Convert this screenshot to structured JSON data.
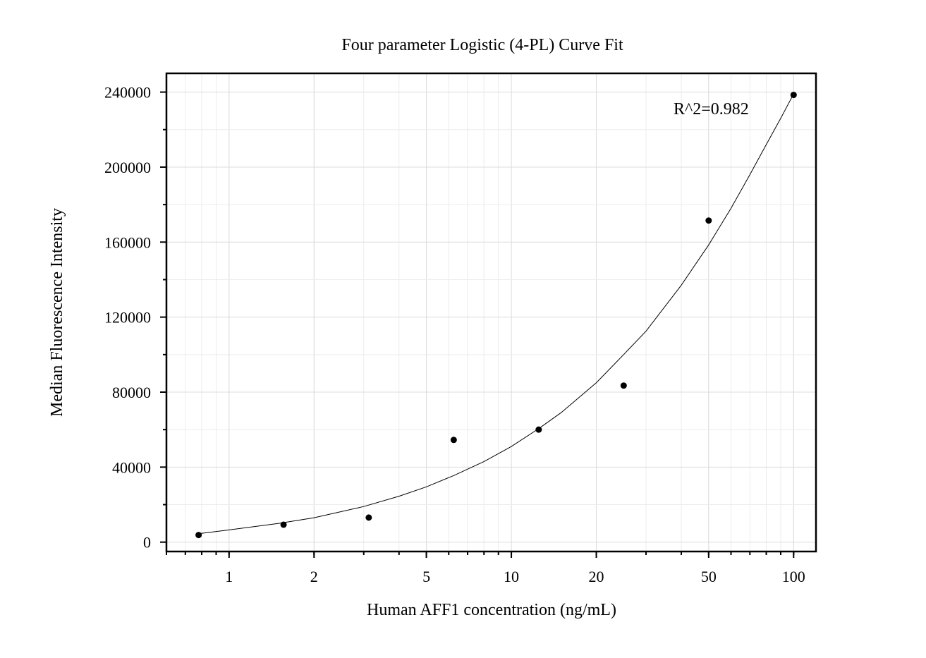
{
  "chart_data": {
    "type": "scatter",
    "title": "Four parameter Logistic (4-PL) Curve Fit",
    "xlabel": "Human AFF1 concentration (ng/mL)",
    "ylabel": "Median Fluorescence Intensity",
    "x_scale": "log",
    "xlim": [
      0.6,
      120
    ],
    "ylim": [
      -5000,
      250000
    ],
    "x_ticks": [
      1,
      2,
      5,
      10,
      20,
      50,
      100
    ],
    "x_tick_labels": [
      "1",
      "2",
      "5",
      "10",
      "20",
      "50",
      "100"
    ],
    "y_ticks": [
      0,
      40000,
      80000,
      120000,
      160000,
      200000,
      240000
    ],
    "y_tick_labels": [
      "0",
      "40000",
      "80000",
      "120000",
      "160000",
      "200000",
      "240000"
    ],
    "grid": true,
    "legend": "none",
    "annotation": "R^2=0.982",
    "series": [
      {
        "type": "scatter",
        "x": [
          0.78,
          1.56,
          3.125,
          6.25,
          12.5,
          25,
          50,
          100
        ],
        "y": [
          3800,
          9300,
          13100,
          54500,
          60000,
          83500,
          171500,
          238500
        ]
      },
      {
        "type": "line",
        "fit": "4PL",
        "x": [
          0.78,
          1,
          1.5,
          2,
          3,
          4,
          5,
          6.25,
          8,
          10,
          12.5,
          15,
          20,
          25,
          30,
          40,
          50,
          60,
          70,
          80,
          90,
          100
        ],
        "y": [
          4500,
          6500,
          10000,
          13000,
          19000,
          24500,
          29500,
          35500,
          43000,
          51000,
          60500,
          69000,
          85000,
          100000,
          112500,
          137000,
          158500,
          178000,
          196000,
          212000,
          226000,
          239000
        ]
      }
    ]
  }
}
